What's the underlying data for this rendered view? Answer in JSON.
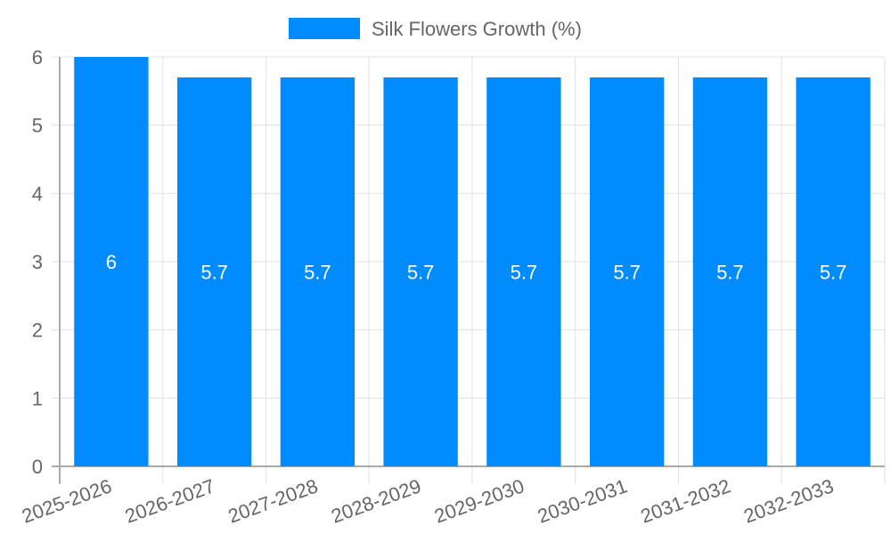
{
  "chart_data": {
    "type": "bar",
    "title": "",
    "xlabel": "",
    "ylabel": "",
    "categories": [
      "2025-2026",
      "2026-2027",
      "2027-2028",
      "2028-2029",
      "2029-2030",
      "2030-2031",
      "2031-2032",
      "2032-2033"
    ],
    "series": [
      {
        "name": "Silk Flowers Growth (%)",
        "color": "#008cff",
        "values": [
          6,
          5.7,
          5.7,
          5.7,
          5.7,
          5.7,
          5.7,
          5.7
        ]
      }
    ],
    "value_labels": [
      "6",
      "5.7",
      "5.7",
      "5.7",
      "5.7",
      "5.7",
      "5.7",
      "5.7"
    ],
    "ylim": [
      0,
      6
    ],
    "yticks": [
      0,
      1,
      2,
      3,
      4,
      5,
      6
    ],
    "grid": true,
    "legend_position": "top",
    "xtick_rotation": -20
  },
  "legend": {
    "label": "Silk Flowers Growth (%)",
    "color": "#008cff"
  },
  "colors": {
    "bar": "#008cff",
    "grid": "#e0e0e0",
    "axis": "#aaaaaa",
    "text": "#666666",
    "value_text": "#ffffff"
  }
}
